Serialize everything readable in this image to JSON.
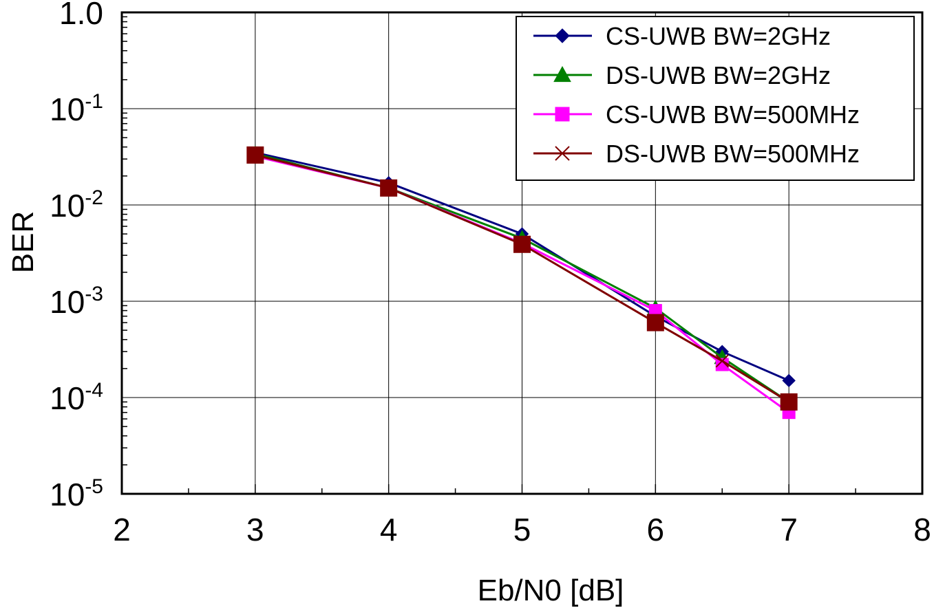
{
  "chart_data": {
    "type": "line",
    "xlabel": "Eb/N0 [dB]",
    "ylabel": "BER",
    "xlim": [
      2,
      8
    ],
    "ylim": [
      1e-05,
      1.0
    ],
    "yscale": "log",
    "x_ticks": [
      "2",
      "3",
      "4",
      "5",
      "6",
      "7",
      "8"
    ],
    "y_ticks": [
      {
        "base": "1.0",
        "exp": ""
      },
      {
        "base": "10",
        "exp": "-1"
      },
      {
        "base": "10",
        "exp": "-2"
      },
      {
        "base": "10",
        "exp": "-3"
      },
      {
        "base": "10",
        "exp": "-4"
      },
      {
        "base": "10",
        "exp": "-5"
      }
    ],
    "grid": true,
    "legend_position": "top-right",
    "series": [
      {
        "name": "CS-UWB BW=2GHz",
        "color": "#000080",
        "marker": "diamond",
        "x": [
          3,
          4,
          5,
          6,
          6.5,
          7
        ],
        "y": [
          0.035,
          0.017,
          0.005,
          0.0007,
          0.0003,
          0.00015
        ]
      },
      {
        "name": "DS-UWB BW=2GHz",
        "color": "#008000",
        "marker": "triangle",
        "x": [
          3,
          4,
          5,
          6,
          6.5,
          7
        ],
        "y": [
          0.034,
          0.015,
          0.0045,
          0.00085,
          0.00026,
          9e-05
        ]
      },
      {
        "name": "CS-UWB BW=500MHz",
        "color": "#ff00ff",
        "marker": "square",
        "x": [
          3,
          4,
          5,
          6,
          6.5,
          7
        ],
        "y": [
          0.032,
          0.015,
          0.004,
          0.0008,
          0.00022,
          7e-05
        ]
      },
      {
        "name": "DS-UWB BW=500MHz",
        "color": "#800000",
        "marker": "x",
        "x": [
          3,
          4,
          5,
          6,
          6.5,
          7
        ],
        "y": [
          0.033,
          0.015,
          0.0039,
          0.0006,
          0.00024,
          9e-05
        ]
      }
    ],
    "overlay_marker": {
      "color": "#800000",
      "marker": "square",
      "x": [
        3,
        4,
        5,
        6,
        7
      ],
      "y": [
        0.033,
        0.015,
        0.0039,
        0.0006,
        9e-05
      ]
    }
  }
}
